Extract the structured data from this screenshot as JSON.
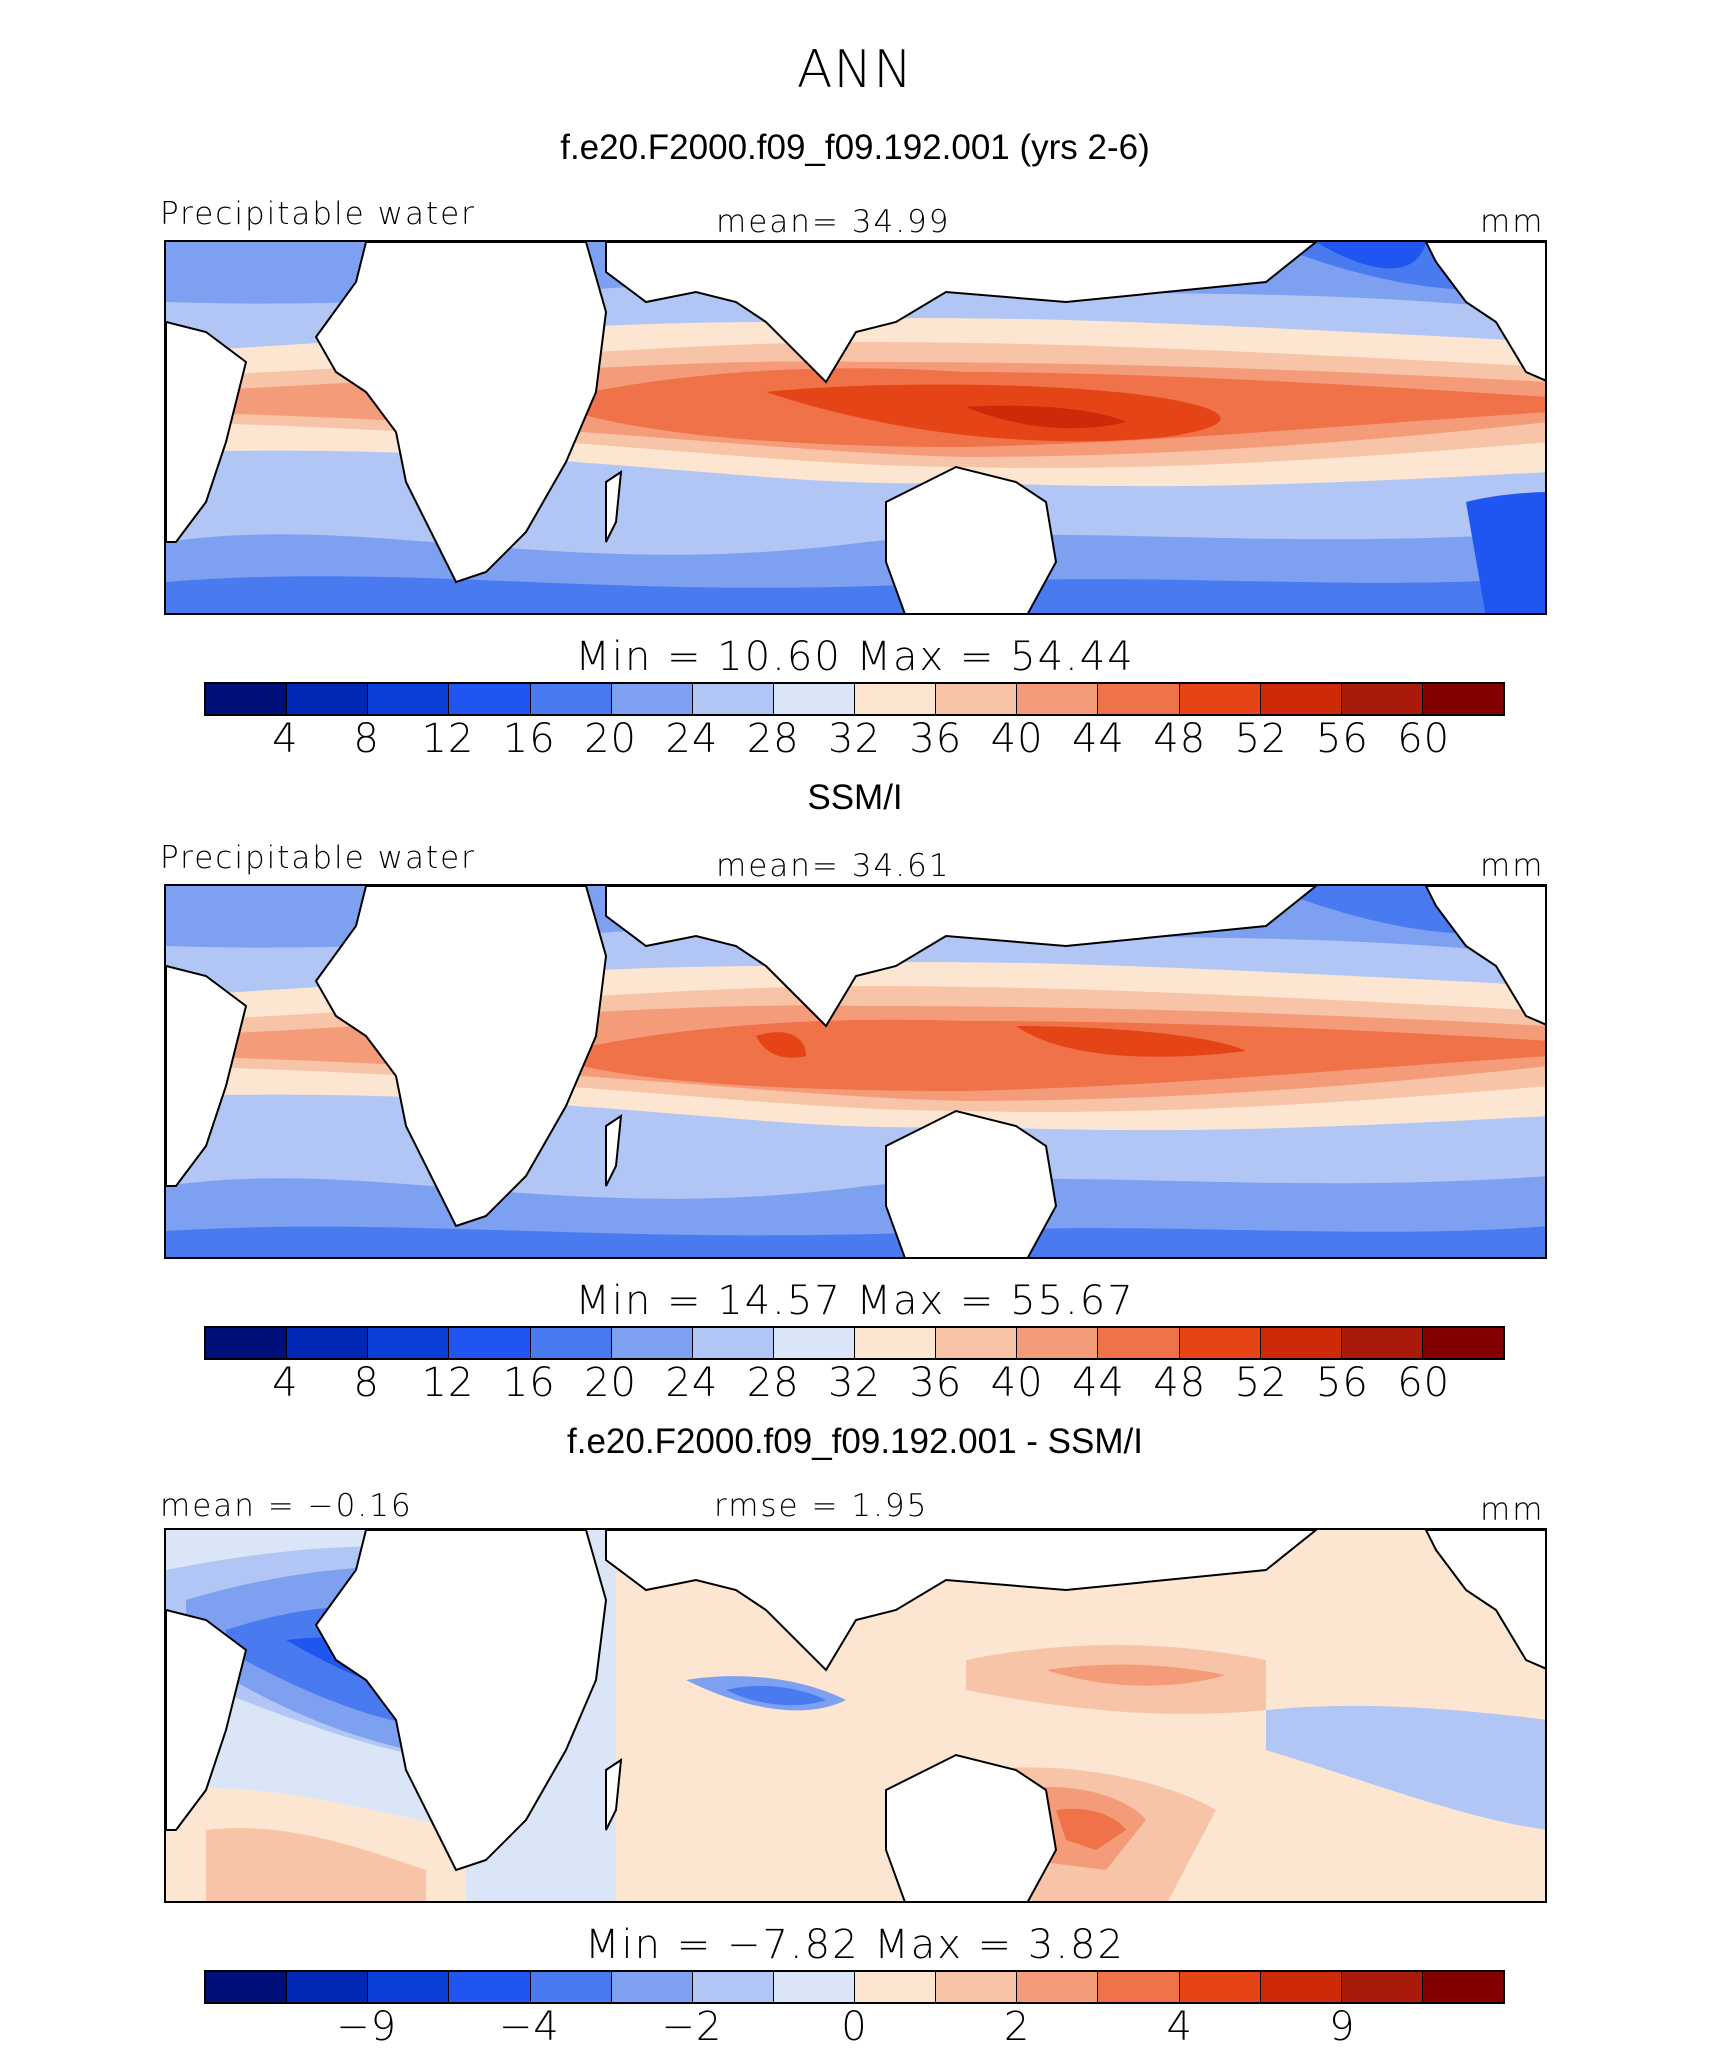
{
  "figure_title": "ANN",
  "colors": {
    "scale": [
      "#00107a",
      "#0028b4",
      "#0a3ed8",
      "#1f56f2",
      "#4a7af0",
      "#7ea0f0",
      "#b1c6f4",
      "#dae6f8",
      "#fce6d2",
      "#f8c4a8",
      "#f49c7a",
      "#f07248",
      "#e44416",
      "#cc2a08",
      "#a81a0a",
      "#820000"
    ],
    "land": "#ffffff",
    "coast": "#000000"
  },
  "panels": [
    {
      "title": "f.e20.F2000.f09_f09.192.001 (yrs 2-6)",
      "left_label": "Precipitable water",
      "center_label": "mean=   34.99",
      "right_label": "mm",
      "minmax": "Min  =   10.60  Max  =    54.44",
      "ticks": [
        "4",
        "8",
        "12",
        "16",
        "20",
        "24",
        "28",
        "32",
        "36",
        "40",
        "44",
        "48",
        "52",
        "56",
        "60"
      ]
    },
    {
      "title": "SSM/I",
      "left_label": "Precipitable water",
      "center_label": "mean=   34.61",
      "right_label": "mm",
      "minmax": "Min  =   14.57  Max  =    55.67",
      "ticks": [
        "4",
        "8",
        "12",
        "16",
        "20",
        "24",
        "28",
        "32",
        "36",
        "40",
        "44",
        "48",
        "52",
        "56",
        "60"
      ]
    },
    {
      "title": "f.e20.F2000.f09_f09.192.001 - SSM/I",
      "left_label": "mean  =   −0.16",
      "center_label": "rmse  =     1.95",
      "right_label": "mm",
      "minmax": "Min  =   −7.82  Max  =      3.82",
      "ticks": [
        "−9",
        "−4",
        "−2",
        "0",
        "2",
        "4",
        "9"
      ]
    }
  ]
}
